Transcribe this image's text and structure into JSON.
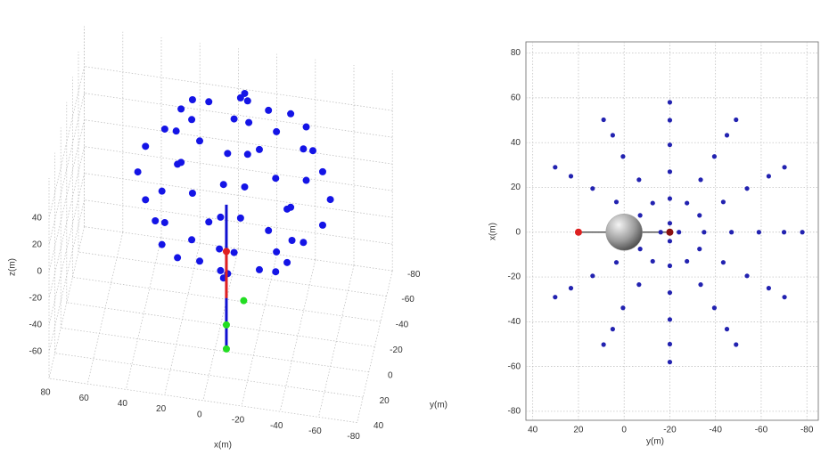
{
  "chart_data": [
    {
      "type": "scatter3d",
      "xlabel": "x(m)",
      "ylabel": "y(m)",
      "zlabel": "z(m)",
      "xlim": [
        -80,
        80
      ],
      "ylim": [
        -80,
        40
      ],
      "zlim": [
        -80,
        70
      ],
      "xticks": [
        80,
        60,
        40,
        20,
        0,
        -20,
        -40,
        -60,
        -80
      ],
      "yticks": [
        -80,
        -60,
        -40,
        -20,
        0,
        20,
        40
      ],
      "zticks": [
        -60,
        -40,
        -20,
        0,
        20,
        40
      ],
      "grid": true,
      "series": [
        {
          "mode": "markers",
          "color": "#1414e6",
          "x": [
            12,
            5.5,
            -10,
            -25.5,
            -32,
            -25.5,
            -10,
            5.5,
            26,
            15.5,
            -10,
            -35.5,
            -46,
            -35.5,
            -10,
            15.5,
            36,
            22.5,
            -10,
            -42.5,
            -56,
            -42.5,
            -10,
            22.5,
            40,
            25.5,
            -10,
            -45.5,
            -60,
            -45.5,
            -10,
            25.5,
            36,
            22.5,
            -10,
            -42.5,
            -56,
            -42.5,
            -10,
            22.5,
            26,
            15.5,
            -10,
            -35.5,
            -46,
            -35.5,
            -10,
            15.5,
            12,
            5.5,
            -10,
            -25.5,
            -32,
            -25.5,
            -10,
            5.5,
            -10,
            -10
          ],
          "y": [
            0,
            15.5,
            22,
            15.5,
            0,
            -15.5,
            -22,
            -15.5,
            0,
            25.5,
            36,
            25.5,
            0,
            -25.5,
            -36,
            -25.5,
            0,
            32.5,
            46,
            32.5,
            0,
            -32.5,
            -46,
            -32.5,
            0,
            35.5,
            50,
            35.5,
            0,
            -35.5,
            -50,
            -35.5,
            0,
            32.5,
            46,
            32.5,
            0,
            -32.5,
            -46,
            -32.5,
            0,
            25.5,
            36,
            25.5,
            0,
            -25.5,
            -36,
            -25.5,
            0,
            15.5,
            22,
            15.5,
            0,
            -15.5,
            -22,
            -15.5,
            0,
            0
          ],
          "values": [
            90,
            90,
            90,
            90,
            90,
            90,
            90,
            90,
            80,
            80,
            80,
            80,
            80,
            80,
            80,
            80,
            65,
            65,
            65,
            65,
            65,
            65,
            65,
            65,
            45,
            45,
            45,
            45,
            45,
            45,
            45,
            45,
            25,
            25,
            25,
            25,
            25,
            25,
            25,
            25,
            10,
            10,
            10,
            10,
            10,
            10,
            10,
            10,
            0,
            0,
            0,
            0,
            0,
            0,
            0,
            0,
            95,
            -5
          ]
        },
        {
          "mode": "line",
          "color": "#1010d0",
          "x": [
            -6,
            -6
          ],
          "y": [
            0,
            0
          ],
          "values": [
            30,
            -78
          ]
        },
        {
          "mode": "line",
          "color": "#e02020",
          "x": [
            -6,
            -6
          ],
          "y": [
            0,
            0
          ],
          "values": [
            -5,
            -40
          ]
        },
        {
          "mode": "markers",
          "color": "#e02020",
          "x": [
            -6
          ],
          "y": [
            0
          ],
          "values": [
            -5
          ]
        },
        {
          "mode": "markers",
          "color": "#22dd22",
          "x": [
            -6,
            -6,
            -15
          ],
          "y": [
            0,
            0,
            0
          ],
          "values": [
            -60,
            -78,
            -40
          ]
        }
      ]
    },
    {
      "type": "scatter",
      "xlabel": "y(m)",
      "ylabel": "x(m)",
      "xlim": [
        43,
        -85
      ],
      "ylim": [
        -84,
        85
      ],
      "xticks": [
        40,
        20,
        0,
        -20,
        -40,
        -60,
        -80
      ],
      "yticks": [
        -80,
        -60,
        -40,
        -20,
        0,
        20,
        40,
        60,
        80
      ],
      "grid": true,
      "series": [
        {
          "mode": "line",
          "color": "#333333",
          "x": [
            20,
            -20
          ],
          "values": [
            0,
            0
          ]
        },
        {
          "mode": "markers",
          "color": "#2222b0",
          "x": [
            -7,
            3.4,
            13.8,
            23.3,
            30.2,
            -12.5,
            -6.5,
            0.5,
            5,
            9,
            -20,
            -20,
            -20,
            -20,
            -20,
            -27.5,
            -33.5,
            -39.5,
            -45,
            -49,
            -33,
            -43.4,
            -53.8,
            -63.3,
            -70.2,
            -35,
            -47,
            -59,
            -70,
            -78,
            -33,
            -43.4,
            -53.8,
            -63.3,
            -70.2,
            -27.5,
            -33.5,
            -39.5,
            -45,
            -49,
            -20,
            -20,
            -20,
            -20,
            -20,
            -12.5,
            -6.5,
            0.5,
            5,
            9,
            -7,
            3.4,
            13.8,
            23.3,
            30.2,
            -16,
            -20,
            -24,
            -20
          ],
          "values": [
            7.5,
            13.5,
            19.5,
            25,
            29,
            13,
            23.4,
            33.8,
            43.3,
            50.2,
            15,
            27,
            39,
            50,
            58,
            13,
            23.4,
            33.8,
            43.3,
            50.2,
            7.5,
            13.5,
            19.5,
            25,
            29,
            0,
            0,
            0,
            0,
            0,
            -7.5,
            -13.5,
            -19.5,
            -25,
            -29,
            -13,
            -23.4,
            -33.8,
            -43.3,
            -50.2,
            -15,
            -27,
            -39,
            -50,
            -58,
            -13,
            -23.4,
            -33.8,
            -43.3,
            -50.2,
            -7.5,
            -13.5,
            -19.5,
            -25,
            -29,
            0,
            4,
            0,
            -4
          ]
        },
        {
          "mode": "bubble",
          "color": "#9a9a9a",
          "x": [
            0
          ],
          "values": [
            0
          ],
          "sizes": [
            8
          ]
        },
        {
          "mode": "markers",
          "color": "#dd2020",
          "x": [
            20
          ],
          "values": [
            0
          ]
        },
        {
          "mode": "markers",
          "color": "#8a1010",
          "x": [
            -20
          ],
          "values": [
            0
          ]
        }
      ]
    }
  ]
}
